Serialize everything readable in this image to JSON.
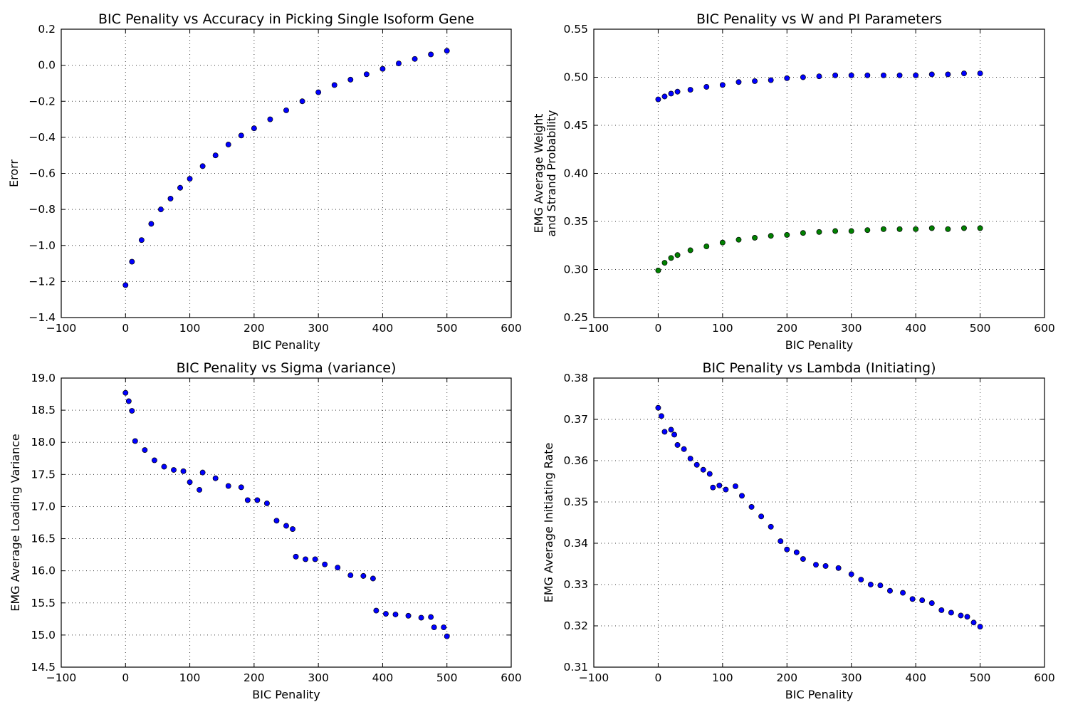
{
  "chart_data": [
    {
      "type": "scatter",
      "title": "BIC Penality vs Accuracy in Picking Single Isoform Gene",
      "xlabel": "BIC Penality",
      "ylabel": [
        "Erorr"
      ],
      "xlim": [
        -100,
        600
      ],
      "ylim": [
        -1.4,
        0.2
      ],
      "xticks": [
        -100,
        0,
        100,
        200,
        300,
        400,
        500,
        600
      ],
      "xtick_labels": [
        "−100",
        "0",
        "100",
        "200",
        "300",
        "400",
        "500",
        "600"
      ],
      "yticks": [
        -1.4,
        -1.2,
        -1.0,
        -0.8,
        -0.6,
        -0.4,
        -0.2,
        0.0,
        0.2
      ],
      "ytick_labels": [
        "−1.4",
        "−1.2",
        "−1.0",
        "−0.8",
        "−0.6",
        "−0.4",
        "−0.2",
        "0.0",
        "0.2"
      ],
      "grid": true,
      "series": [
        {
          "color": "#0000ff",
          "x": [
            0,
            10,
            25,
            40,
            55,
            70,
            85,
            100,
            120,
            140,
            160,
            180,
            200,
            225,
            250,
            275,
            300,
            325,
            350,
            375,
            400,
            425,
            450,
            475,
            500
          ],
          "y": [
            -1.22,
            -1.09,
            -0.97,
            -0.88,
            -0.8,
            -0.74,
            -0.68,
            -0.63,
            -0.56,
            -0.5,
            -0.44,
            -0.39,
            -0.35,
            -0.3,
            -0.25,
            -0.2,
            -0.15,
            -0.11,
            -0.08,
            -0.05,
            -0.02,
            0.01,
            0.035,
            0.06,
            0.08
          ]
        }
      ]
    },
    {
      "type": "scatter",
      "title": "BIC Penality vs W and PI Parameters",
      "xlabel": "BIC Penality",
      "ylabel": [
        "EMG Average Weight",
        "and Strand Probability"
      ],
      "xlim": [
        -100,
        600
      ],
      "ylim": [
        0.25,
        0.55
      ],
      "xticks": [
        -100,
        0,
        100,
        200,
        300,
        400,
        500,
        600
      ],
      "xtick_labels": [
        "−100",
        "0",
        "100",
        "200",
        "300",
        "400",
        "500",
        "600"
      ],
      "yticks": [
        0.25,
        0.3,
        0.35,
        0.4,
        0.45,
        0.5,
        0.55
      ],
      "ytick_labels": [
        "0.25",
        "0.30",
        "0.35",
        "0.40",
        "0.45",
        "0.50",
        "0.55"
      ],
      "grid": true,
      "series": [
        {
          "color": "#0000ff",
          "x": [
            0,
            10,
            20,
            30,
            50,
            75,
            100,
            125,
            150,
            175,
            200,
            225,
            250,
            275,
            300,
            325,
            350,
            375,
            400,
            425,
            450,
            475,
            500
          ],
          "y": [
            0.477,
            0.48,
            0.483,
            0.485,
            0.487,
            0.49,
            0.492,
            0.495,
            0.496,
            0.497,
            0.499,
            0.5,
            0.501,
            0.502,
            0.502,
            0.502,
            0.502,
            0.502,
            0.502,
            0.503,
            0.503,
            0.504,
            0.504
          ]
        },
        {
          "color": "#008000",
          "x": [
            0,
            10,
            20,
            30,
            50,
            75,
            100,
            125,
            150,
            175,
            200,
            225,
            250,
            275,
            300,
            325,
            350,
            375,
            400,
            425,
            450,
            475,
            500
          ],
          "y": [
            0.299,
            0.307,
            0.312,
            0.315,
            0.32,
            0.324,
            0.328,
            0.331,
            0.333,
            0.335,
            0.336,
            0.338,
            0.339,
            0.34,
            0.34,
            0.341,
            0.342,
            0.342,
            0.342,
            0.343,
            0.342,
            0.343,
            0.343
          ]
        }
      ]
    },
    {
      "type": "scatter",
      "title": "BIC Penality vs Sigma (variance)",
      "xlabel": "BIC Penality",
      "ylabel": [
        "EMG Average Loading Variance"
      ],
      "xlim": [
        -100,
        600
      ],
      "ylim": [
        14.5,
        19.0
      ],
      "xticks": [
        -100,
        0,
        100,
        200,
        300,
        400,
        500,
        600
      ],
      "xtick_labels": [
        "−100",
        "0",
        "100",
        "200",
        "300",
        "400",
        "500",
        "600"
      ],
      "yticks": [
        14.5,
        15.0,
        15.5,
        16.0,
        16.5,
        17.0,
        17.5,
        18.0,
        18.5,
        19.0
      ],
      "ytick_labels": [
        "14.5",
        "15.0",
        "15.5",
        "16.0",
        "16.5",
        "17.0",
        "17.5",
        "18.0",
        "18.5",
        "19.0"
      ],
      "grid": true,
      "series": [
        {
          "color": "#0000ff",
          "x": [
            0,
            5,
            10,
            15,
            30,
            45,
            60,
            75,
            90,
            100,
            115,
            120,
            140,
            160,
            180,
            190,
            205,
            220,
            235,
            250,
            260,
            265,
            280,
            295,
            310,
            330,
            350,
            370,
            385,
            390,
            405,
            420,
            440,
            460,
            475,
            480,
            495,
            500
          ],
          "y": [
            18.77,
            18.64,
            18.49,
            18.02,
            17.88,
            17.72,
            17.62,
            17.57,
            17.55,
            17.38,
            17.26,
            17.53,
            17.44,
            17.32,
            17.3,
            17.1,
            17.1,
            17.05,
            16.78,
            16.7,
            16.65,
            16.22,
            16.18,
            16.18,
            16.1,
            16.05,
            15.93,
            15.92,
            15.88,
            15.38,
            15.33,
            15.32,
            15.3,
            15.27,
            15.28,
            15.12,
            15.12,
            14.98
          ]
        }
      ]
    },
    {
      "type": "scatter",
      "title": "BIC Penality vs Lambda (Initiating)",
      "xlabel": "BIC Penality",
      "ylabel": [
        "EMG Average Initiating Rate"
      ],
      "xlim": [
        -100,
        600
      ],
      "ylim": [
        0.31,
        0.38
      ],
      "xticks": [
        -100,
        0,
        100,
        200,
        300,
        400,
        500,
        600
      ],
      "xtick_labels": [
        "−100",
        "0",
        "100",
        "200",
        "300",
        "400",
        "500",
        "600"
      ],
      "yticks": [
        0.31,
        0.32,
        0.33,
        0.34,
        0.35,
        0.36,
        0.37,
        0.38
      ],
      "ytick_labels": [
        "0.31",
        "0.32",
        "0.33",
        "0.34",
        "0.35",
        "0.36",
        "0.37",
        "0.38"
      ],
      "grid": true,
      "series": [
        {
          "color": "#0000ff",
          "x": [
            0,
            5,
            10,
            20,
            25,
            30,
            40,
            50,
            60,
            70,
            80,
            85,
            95,
            105,
            120,
            130,
            145,
            160,
            175,
            190,
            200,
            215,
            225,
            245,
            260,
            280,
            300,
            315,
            330,
            345,
            360,
            380,
            395,
            410,
            425,
            440,
            455,
            470,
            480,
            490,
            500
          ],
          "y": [
            0.3728,
            0.3708,
            0.367,
            0.3675,
            0.3663,
            0.3638,
            0.3628,
            0.3605,
            0.359,
            0.3578,
            0.3568,
            0.3535,
            0.354,
            0.353,
            0.3538,
            0.3515,
            0.3488,
            0.3465,
            0.344,
            0.3405,
            0.3385,
            0.3378,
            0.3362,
            0.3348,
            0.3345,
            0.334,
            0.3325,
            0.3312,
            0.33,
            0.3298,
            0.3285,
            0.328,
            0.3265,
            0.3262,
            0.3255,
            0.3238,
            0.3232,
            0.3225,
            0.3222,
            0.3208,
            0.3198
          ]
        }
      ]
    }
  ]
}
